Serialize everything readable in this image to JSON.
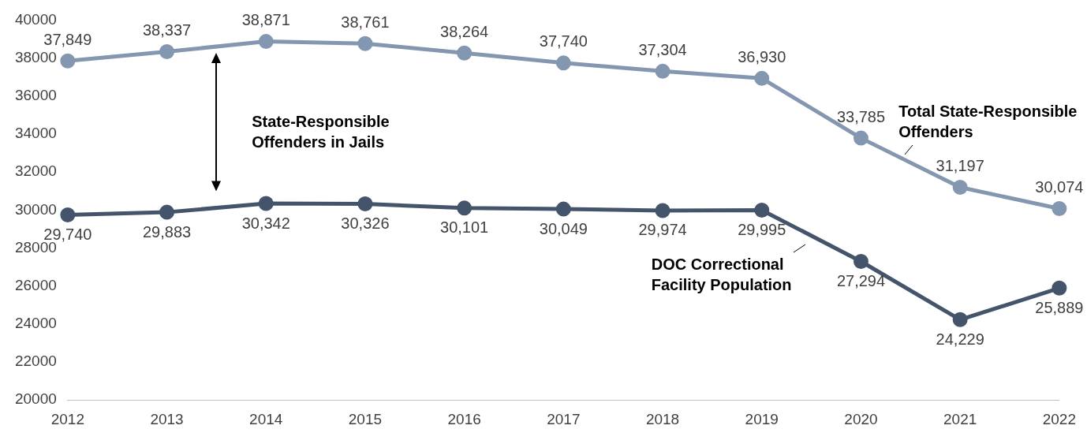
{
  "chart_data": {
    "type": "line",
    "categories": [
      "2012",
      "2013",
      "2014",
      "2015",
      "2016",
      "2017",
      "2018",
      "2019",
      "2020",
      "2021",
      "2022"
    ],
    "series": [
      {
        "name": "Total State-Responsible Offenders",
        "color": "#8497b0",
        "values": [
          37849,
          38337,
          38871,
          38761,
          38264,
          37740,
          37304,
          36930,
          33785,
          31197,
          30074
        ],
        "value_labels": [
          "37,849",
          "38,337",
          "38,871",
          "38,761",
          "38,264",
          "37,740",
          "37,304",
          "36,930",
          "33,785",
          "31,197",
          "30,074"
        ]
      },
      {
        "name": "DOC Correctional Facility Population",
        "color": "#44546a",
        "values": [
          29740,
          29883,
          30342,
          30326,
          30101,
          30049,
          29974,
          29995,
          27294,
          24229,
          25889
        ],
        "value_labels": [
          "29,740",
          "29,883",
          "30,342",
          "30,326",
          "30,101",
          "30,049",
          "29,974",
          "29,995",
          "27,294",
          "24,229",
          "25,889"
        ]
      }
    ],
    "ylim": [
      20000,
      40000
    ],
    "yticks": [
      20000,
      22000,
      24000,
      26000,
      28000,
      30000,
      32000,
      34000,
      36000,
      38000,
      40000
    ],
    "grid": false,
    "legend": false,
    "marker": "circle",
    "line_style": "solid",
    "annotations": [
      "State-Responsible Offenders in Jails"
    ]
  }
}
